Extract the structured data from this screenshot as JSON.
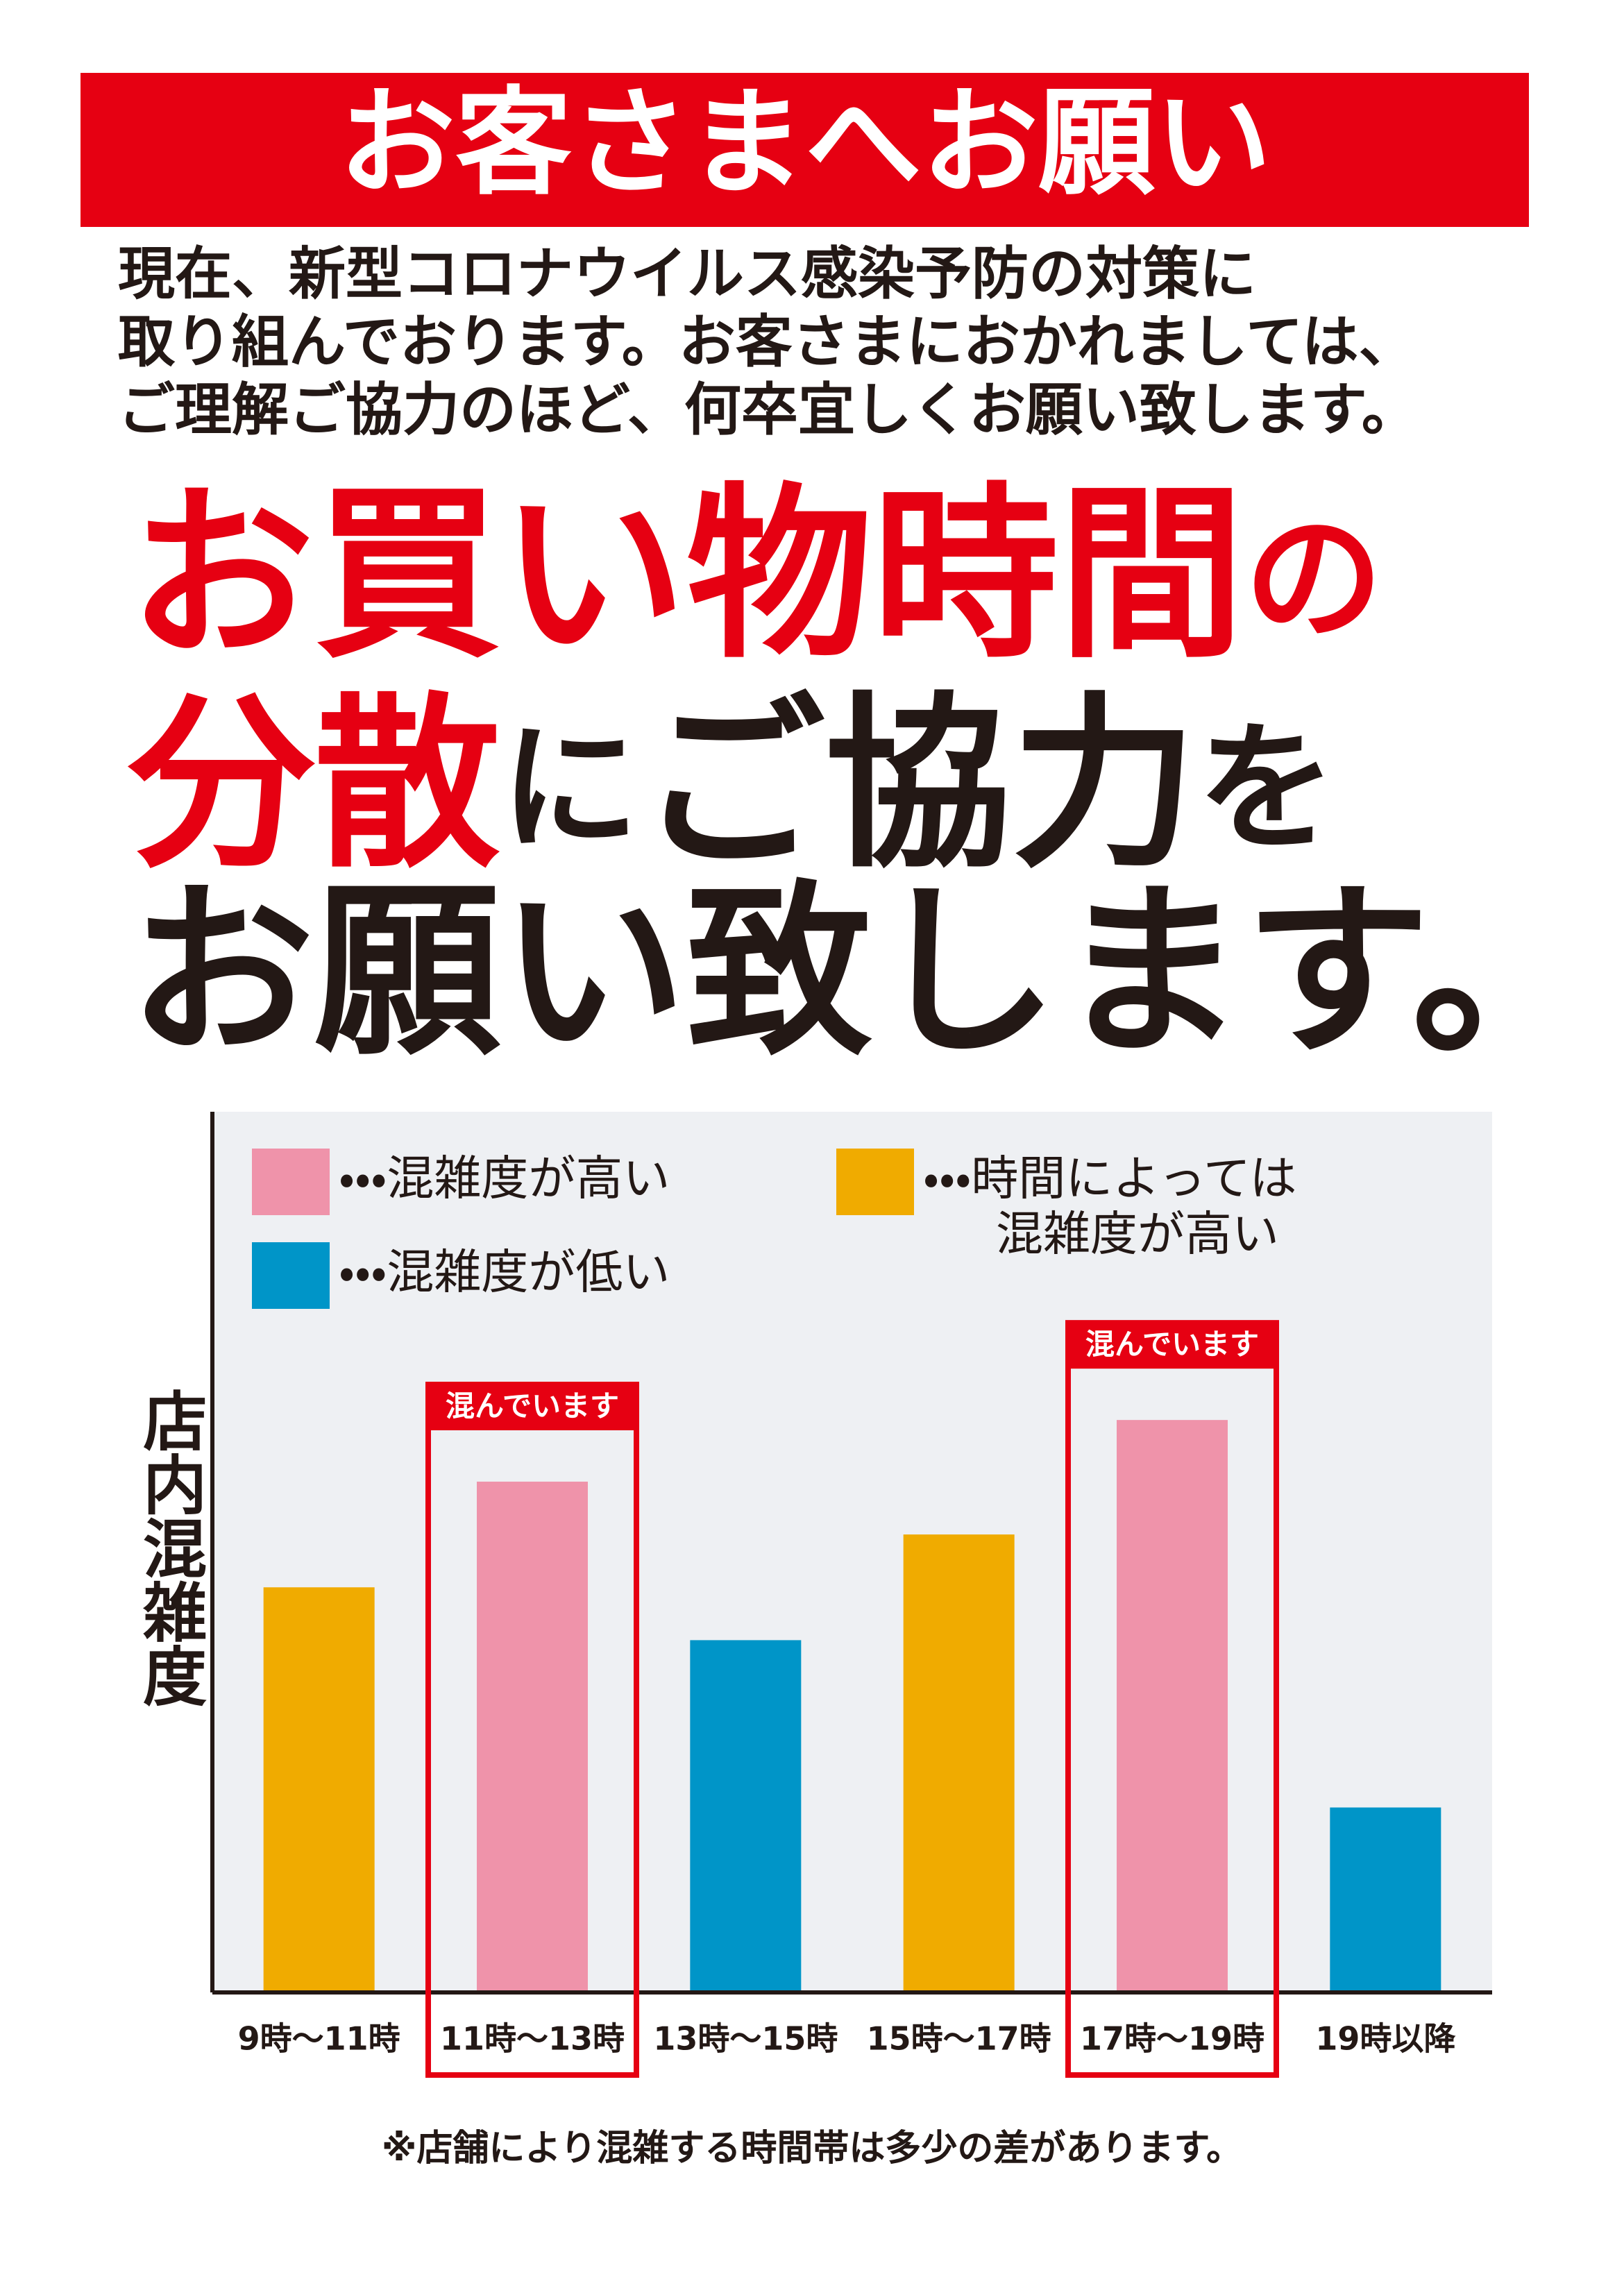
{
  "header": {
    "title": "お客さまへお願い"
  },
  "intro": {
    "lines": [
      "現在、新型コロナウイルス感染予防の対策に",
      "取り組んでおります。お客さまにおかれましては、",
      "ご理解ご協力のほど、何卒宜しくお願い致します。"
    ]
  },
  "headline": {
    "lines": [
      [
        "お買い物時間",
        "の"
      ],
      [
        "分散",
        "に",
        "ご協力",
        "を"
      ],
      [
        "お願い致します。"
      ]
    ]
  },
  "chart_data": {
    "type": "bar",
    "y_label": "店内混雑度",
    "categories": [
      "9時～11時",
      "11時～13時",
      "13時～15時",
      "15時～17時",
      "17時～19時",
      "19時以降"
    ],
    "values": [
      46,
      58,
      40,
      52,
      65,
      21
    ],
    "colors": [
      "#f0ab00",
      "#ef93aa",
      "#0095c8",
      "#f0ab00",
      "#ef93aa",
      "#0095c8"
    ],
    "ylim": [
      0,
      100
    ],
    "legend": [
      {
        "color": "#ef93aa",
        "label_lines": [
          "・・・混雑度が高い"
        ]
      },
      {
        "color": "#0095c8",
        "label_lines": [
          "・・・混雑度が低い"
        ]
      },
      {
        "color": "#f0ab00",
        "label_lines": [
          "・・・時間によっては",
          "混雑度が高い"
        ]
      }
    ],
    "highlights": [
      {
        "index": 1,
        "text": "混んでいます"
      },
      {
        "index": 4,
        "text": "混んでいます"
      }
    ],
    "highlight_color": "#e60012"
  },
  "footnote": "※店舗により混雑する時間帯は多少の差があります。"
}
